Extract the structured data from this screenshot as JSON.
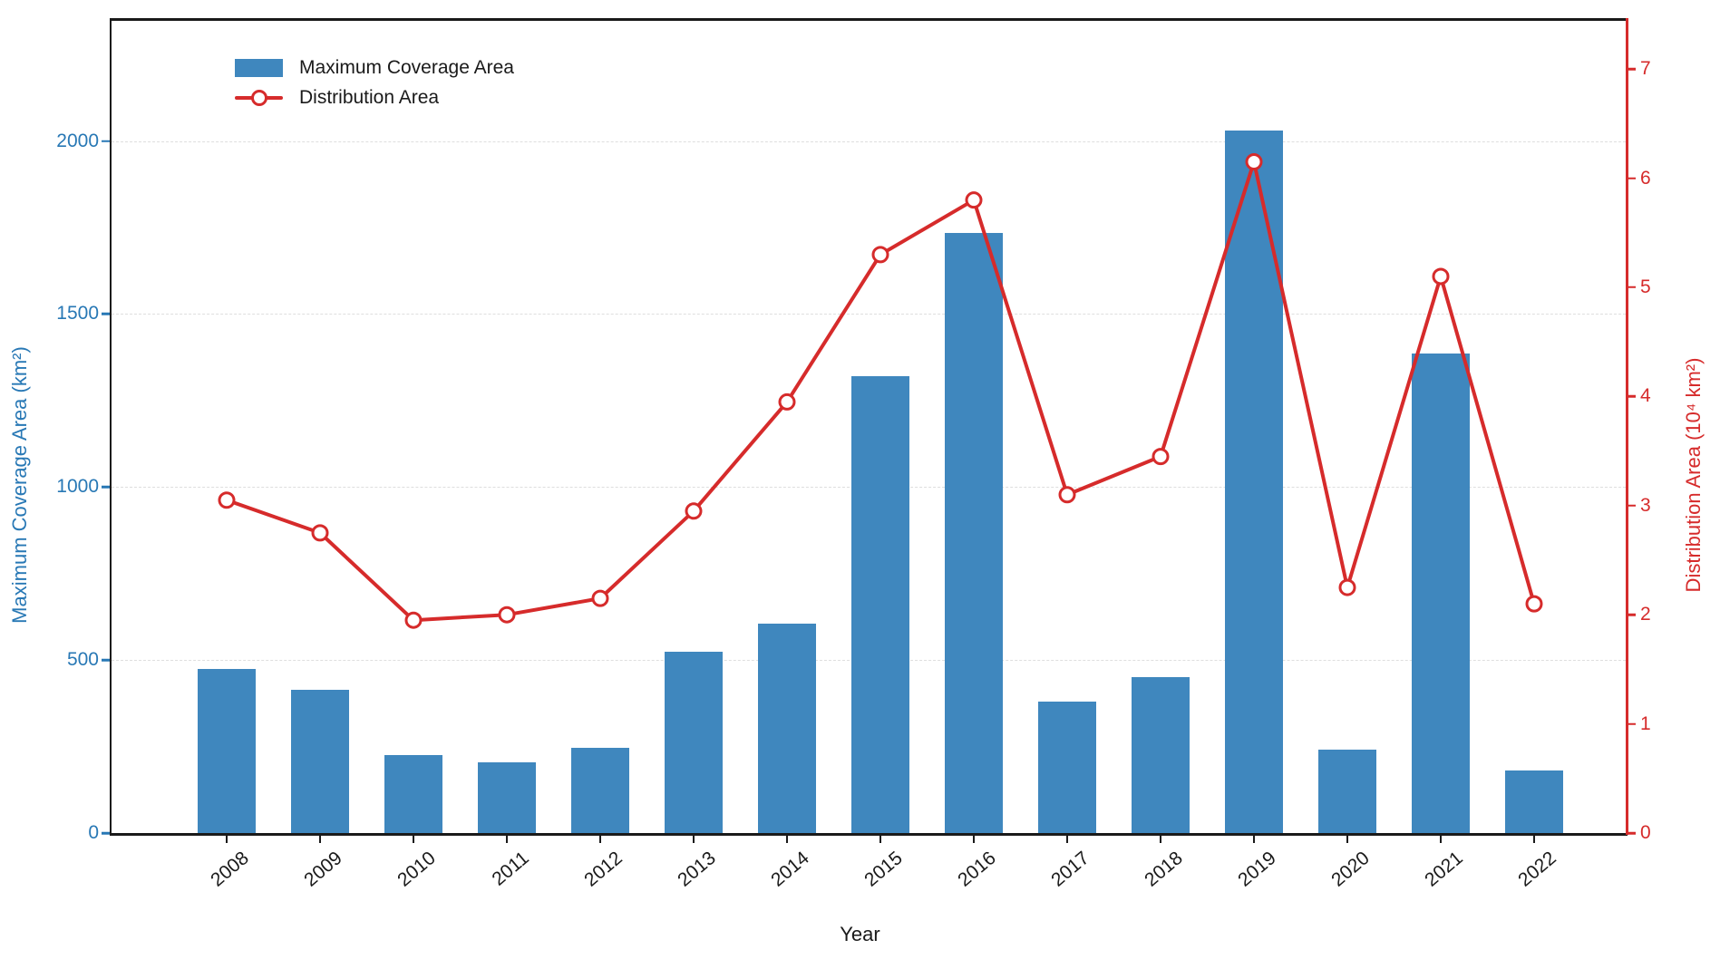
{
  "colors": {
    "bar_blue": "#3f87be",
    "left_axis_text": "#2878b5",
    "line_red": "#d62b2b",
    "right_axis_text": "#d62b2b",
    "grid": "#dedede",
    "spine": "#1a1a1a"
  },
  "legend": {
    "bar_label": "Maximum Coverage Area",
    "line_label": "Distribution Area"
  },
  "chart_data": {
    "type": "bar",
    "title": "",
    "xlabel": "Year",
    "categories": [
      "2008",
      "2009",
      "2010",
      "2011",
      "2012",
      "2013",
      "2014",
      "2015",
      "2016",
      "2017",
      "2018",
      "2019",
      "2020",
      "2021",
      "2022"
    ],
    "series": [
      {
        "name": "Maximum Coverage Area",
        "kind": "bar",
        "axis": "left",
        "values": [
          475,
          415,
          225,
          205,
          245,
          525,
          605,
          1320,
          1735,
          380,
          450,
          2030,
          240,
          1385,
          180
        ]
      },
      {
        "name": "Distribution Area",
        "kind": "line",
        "axis": "right",
        "values": [
          3.05,
          2.75,
          1.95,
          2.0,
          2.15,
          2.95,
          3.95,
          5.3,
          5.8,
          3.1,
          3.45,
          6.15,
          2.25,
          5.1,
          2.1
        ]
      }
    ],
    "axes": {
      "left": {
        "label": "Maximum Coverage Area (km²)",
        "ticks": [
          0,
          500,
          1000,
          1500,
          2000
        ],
        "min": 0,
        "max": 2350
      },
      "right": {
        "label": "Distribution Area (10⁴ km²)",
        "ticks": [
          0,
          1,
          2,
          3,
          4,
          5,
          6,
          7
        ],
        "min": 0,
        "max": 7.45
      }
    },
    "grid": "dashed horizontal at left-axis ticks",
    "legend_position": "upper left"
  }
}
